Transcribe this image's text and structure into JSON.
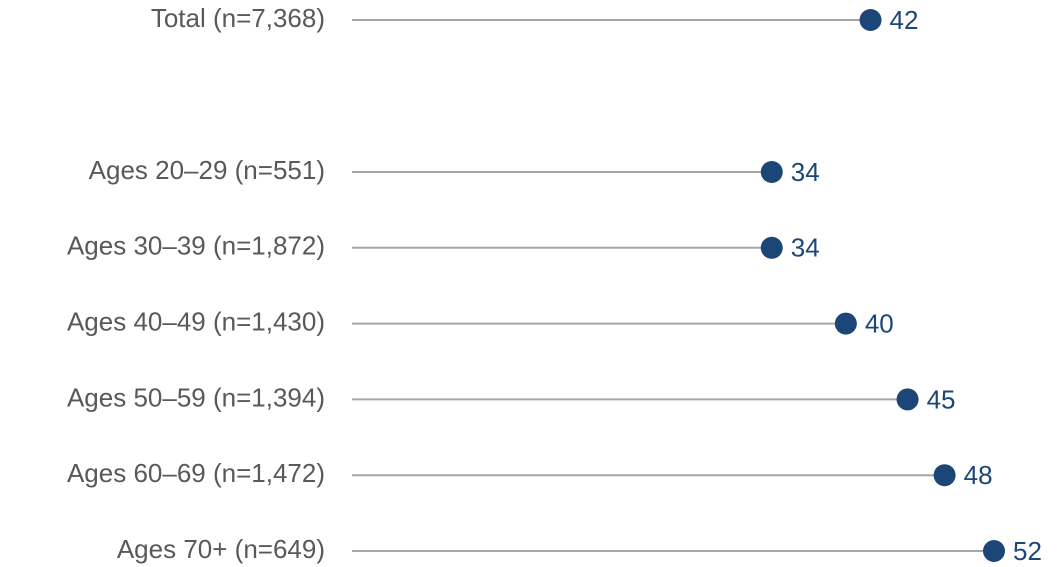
{
  "chart_data": {
    "type": "lollipop",
    "categories": [
      "Total (n=7,368)",
      "Ages 20–29 (n=551)",
      "Ages 30–39 (n=1,872)",
      "Ages 40–49 (n=1,430)",
      "Ages 50–59 (n=1,394)",
      "Ages 60–69 (n=1,472)",
      "Ages 70+ (n=649)"
    ],
    "values": [
      42,
      34,
      34,
      40,
      45,
      48,
      52
    ],
    "color": "#1b4677",
    "line_color": "#a6a6a6"
  }
}
